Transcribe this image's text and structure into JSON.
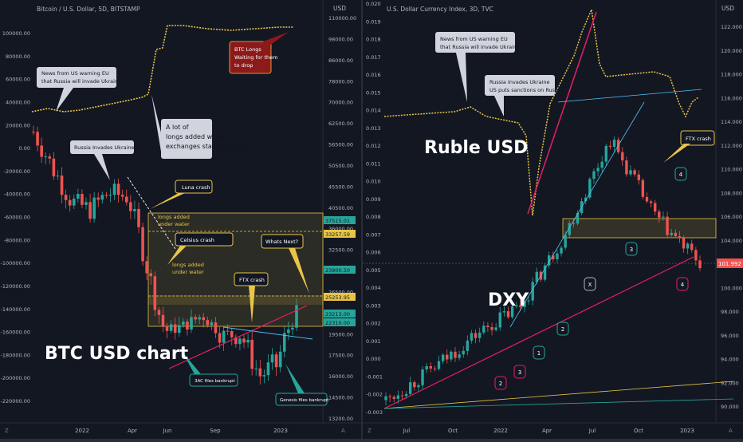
{
  "colors": {
    "background": "#131722",
    "divider": "#2a2e39",
    "axis_text": "#b2b5be",
    "grid": "#1e222d",
    "up": "#26a69a",
    "down": "#ef5350",
    "btc_longs": "#e8c547",
    "trend_pink": "#e91e63",
    "trend_light": "#4fc3f7",
    "zone": "#e8c547"
  },
  "left": {
    "title": "Bitcoin / U.S. Dollar, 5D, BITSTAMP",
    "label_text": "BTC USD chart",
    "left_axis": [
      "100000.00",
      "80000.00",
      "60000.00",
      "40000.00",
      "20000.00",
      "0.00",
      "-20000.00",
      "-40000.00",
      "-60000.00",
      "-80000.00",
      "-100000.00",
      "-120000.00",
      "-140000.00",
      "-160000.00",
      "-180000.00",
      "-200000.00",
      "-220000.00"
    ],
    "right_axis": [
      "110000.00",
      "98000.00",
      "86000.00",
      "78000.00",
      "70000.00",
      "62500.00",
      "56500.00",
      "50500.00",
      "45500.00",
      "40500.00",
      "36000.00",
      "32500.00",
      "29000.00",
      "26500.00",
      "23500.00",
      "19500.00",
      "17500.00",
      "16000.00",
      "14500.00",
      "13200.00"
    ],
    "right_currency": "USD",
    "x_axis": [
      "2022",
      "Apr",
      "Jun",
      "Sep",
      "2023"
    ],
    "price_tags": [
      {
        "value": "37515.01",
        "color": "#26a69a"
      },
      {
        "value": "33257.59",
        "color": "#e8c547"
      },
      {
        "value": "23900.50",
        "color": "#26a69a"
      },
      {
        "value": "25253.95",
        "color": "#e8c547"
      },
      {
        "value": "23213.00",
        "color": "#26a69a"
      },
      {
        "value": "22310.00",
        "color": "#26a69a"
      }
    ],
    "annotations": {
      "news": "News from US warning EU that Russia will invade Ukraine",
      "invade": "Russia Invades Ukraine",
      "longs_note": "A lot of longs added when exchanges started falling",
      "luna": "Luna crash",
      "celsius": "Celsius crash",
      "ftx": "FTX crash",
      "next": "Whats Next?",
      "btc_longs": "BTC Longs Waiting for them to drop",
      "three_ac": "3AC files bankrupt",
      "genesis": "Genesis files bankrupt",
      "longs_water_1": "longs added under water",
      "longs_water_2": "longs added under water"
    },
    "legend_marker": "Z",
    "settings_marker": "A"
  },
  "right": {
    "title": "U.S. Dollar Currency Index, 3D, TVC",
    "label_ruble": "Ruble USD",
    "label_dxy": "DXY",
    "left_axis": [
      "0.020",
      "0.019",
      "0.018",
      "0.017",
      "0.016",
      "0.015",
      "0.014",
      "0.013",
      "0.012",
      "0.011",
      "0.010",
      "0.009",
      "0.008",
      "0.007",
      "0.006",
      "0.005",
      "0.004",
      "0.003",
      "0.002",
      "0.001",
      "0.000",
      "-0.001",
      "-0.002",
      "-0.003"
    ],
    "right_axis": [
      "122.000",
      "120.000",
      "118.000",
      "116.000",
      "114.000",
      "112.000",
      "110.000",
      "108.000",
      "106.000",
      "104.000",
      "102.000",
      "100.000",
      "98.000",
      "96.000",
      "94.000",
      "92.000",
      "90.000"
    ],
    "right_currency": "USD",
    "x_axis": [
      "Jul",
      "Oct",
      "2022",
      "Apr",
      "Jul",
      "Oct",
      "2023"
    ],
    "price_tag": {
      "value": "101.992",
      "color": "#ef5350"
    },
    "annotations": {
      "news": "News from US warning EU that Russia will invade Ukraine",
      "invade": "Russia Invades Ukraine US puts sanctions on Russia",
      "ftx": "FTX crash"
    },
    "wave_labels": [
      {
        "text": "2",
        "color": "#e91e63"
      },
      {
        "text": "3",
        "color": "#e91e63"
      },
      {
        "text": "1",
        "color": "#26a69a"
      },
      {
        "text": "2",
        "color": "#26a69a"
      },
      {
        "text": "X",
        "color": "#b2b5be"
      },
      {
        "text": "3",
        "color": "#26a69a"
      },
      {
        "text": "4",
        "color": "#26a69a"
      },
      {
        "text": "4",
        "color": "#e91e63"
      }
    ],
    "legend_marker": "Z",
    "settings_marker": "A"
  },
  "chart_data": [
    {
      "type": "line",
      "title": "Bitcoin / U.S. Dollar, 5D, BITSTAMP",
      "x": [
        "2021-10",
        "2021-12",
        "2022-01",
        "2022-02",
        "2022-03",
        "2022-04",
        "2022-05",
        "2022-06",
        "2022-07",
        "2022-08",
        "2022-09",
        "2022-10",
        "2022-11",
        "2022-12",
        "2023-01"
      ],
      "series": [
        {
          "name": "",
          "values": [
            60000,
            50000,
            42000,
            40000,
            44000,
            43000,
            30000,
            20000,
            21000,
            23000,
            19500,
            19500,
            16000,
            16800,
            23200
          ]
        }
      ],
      "ylim": [
        13200,
        110000
      ]
    },
    {
      "type": "line",
      "title": "U.S. Dollar Currency Index, 3D, TVC",
      "x": [
        "2021-06",
        "2021-09",
        "2021-12",
        "2022-03",
        "2022-06",
        "2022-09",
        "2022-11",
        "2023-01"
      ],
      "series": [
        {
          "name": "",
          "values": [
            90.5,
            93.0,
            96.0,
            98.5,
            104.5,
            112.5,
            106.0,
            102.0
          ]
        }
      ],
      "ylim": [
        90,
        122
      ]
    }
  ]
}
